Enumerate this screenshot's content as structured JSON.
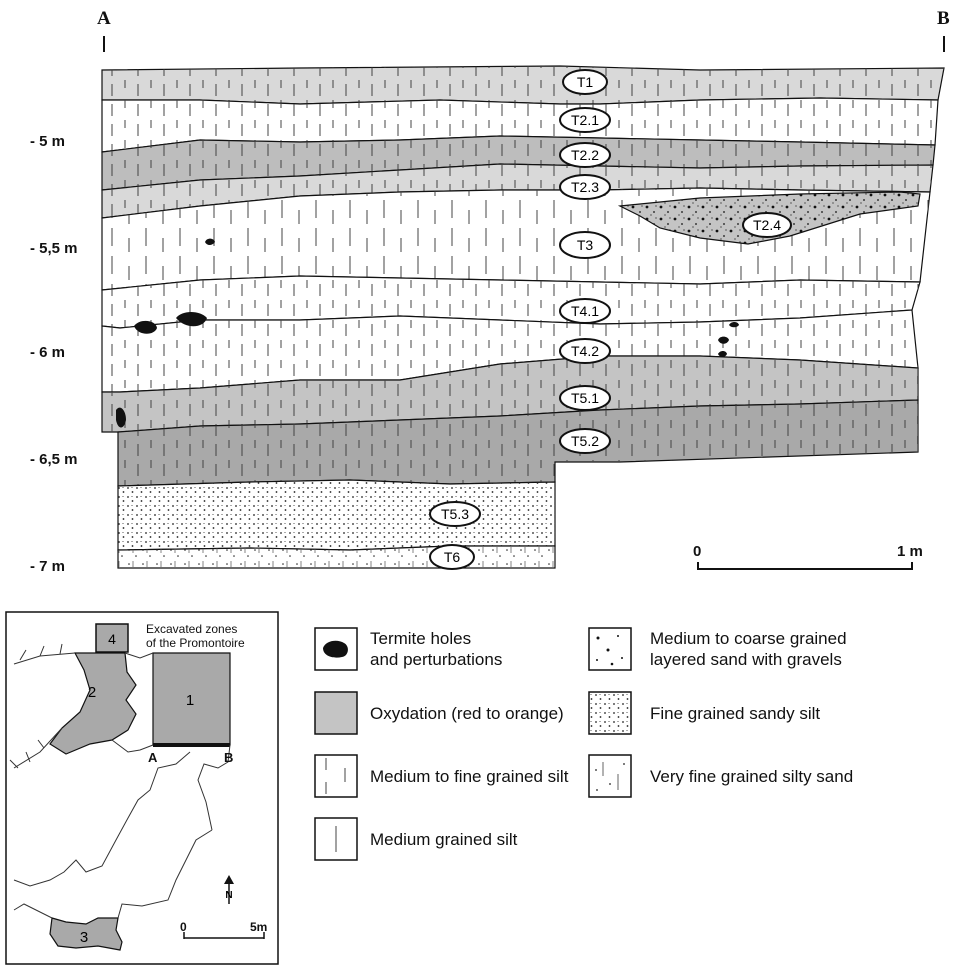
{
  "section": {
    "endpoint_left": "A",
    "endpoint_right": "B",
    "depths": [
      "- 5 m",
      "- 5,5 m",
      "- 6 m",
      "- 6,5 m",
      "- 7 m"
    ],
    "layers": [
      "T1",
      "T2.1",
      "T2.2",
      "T2.3",
      "T2.4",
      "T3",
      "T4.1",
      "T4.2",
      "T5.1",
      "T5.2",
      "T5.3",
      "T6"
    ],
    "scale": {
      "start": "0",
      "end": "1 m"
    }
  },
  "legend": {
    "termite": [
      "Termite holes",
      "and perturbations"
    ],
    "oxydation": "Oxydation (red to orange)",
    "medium_fine_silt": "Medium to fine grained silt",
    "medium_silt": "Medium grained silt",
    "coarse_sand": [
      "Medium to coarse grained",
      "layered sand with gravels"
    ],
    "sandy_silt": "Fine grained sandy silt",
    "silty_sand": "Very fine grained silty sand"
  },
  "inset_map": {
    "title": [
      "Excavated zones",
      "of the Promontoire"
    ],
    "zones": [
      "4",
      "1",
      "2",
      "3"
    ],
    "section_a": "A",
    "section_b": "B",
    "north": "N",
    "scale_start": "0",
    "scale_end": "5m"
  },
  "colors": {
    "oxidation_light": "#d9d9d9",
    "oxidation_mid": "#c4c4c4",
    "oxidation_dark": "#a9a9a9",
    "outline": "#111111"
  }
}
